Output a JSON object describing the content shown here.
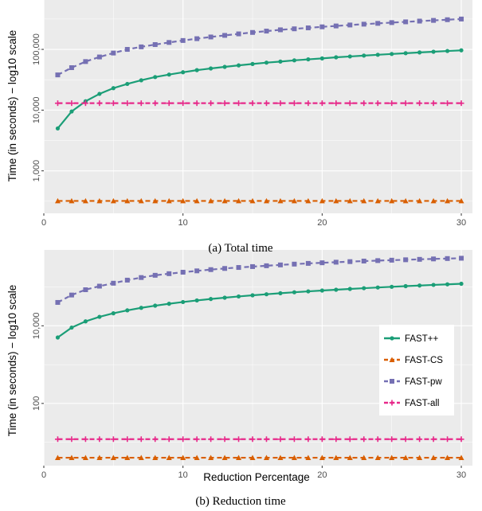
{
  "chart_data": [
    {
      "type": "line",
      "caption": "(a) Total time",
      "xlabel": "",
      "ylabel": "Time (in seconds) − log10 scale",
      "y_scale": "log10",
      "xlim": [
        0,
        30.8
      ],
      "ylim": [
        200,
        650000
      ],
      "x_ticks": [
        0,
        10,
        20,
        30
      ],
      "y_ticks": [
        1000,
        10000,
        100000
      ],
      "y_tick_labels": [
        "1,000",
        "10,000",
        "100,000"
      ],
      "grid": true,
      "x": [
        1,
        2,
        3,
        4,
        5,
        6,
        7,
        8,
        9,
        10,
        11,
        12,
        13,
        14,
        15,
        16,
        17,
        18,
        19,
        20,
        21,
        22,
        23,
        24,
        25,
        26,
        27,
        28,
        29,
        30
      ],
      "series": [
        {
          "name": "FAST++",
          "color": "#1b9e77",
          "marker": "circle",
          "dash": "solid",
          "values": [
            5000,
            9500,
            14000,
            18500,
            23000,
            27000,
            31000,
            35000,
            38500,
            42000,
            45500,
            48500,
            51500,
            54500,
            57500,
            60500,
            63000,
            66000,
            68500,
            71000,
            74000,
            76500,
            79000,
            81500,
            84000,
            86500,
            89000,
            91500,
            94000,
            96500
          ]
        },
        {
          "name": "FAST-CS",
          "color": "#d95f02",
          "marker": "triangle",
          "dash": "dashed",
          "values": [
            320,
            320,
            320,
            320,
            320,
            320,
            320,
            320,
            320,
            320,
            320,
            320,
            320,
            320,
            320,
            320,
            320,
            320,
            320,
            320,
            320,
            320,
            320,
            320,
            320,
            320,
            320,
            320,
            320,
            320
          ]
        },
        {
          "name": "FAST-pw",
          "color": "#7570b3",
          "marker": "square",
          "dash": "dashed",
          "values": [
            38000,
            50000,
            63000,
            75000,
            87000,
            100000,
            110000,
            120000,
            130000,
            140000,
            150000,
            160000,
            170000,
            180000,
            190000,
            200000,
            210000,
            218000,
            226000,
            235000,
            243000,
            252000,
            260000,
            268000,
            276000,
            284000,
            292000,
            300000,
            308000,
            316000
          ]
        },
        {
          "name": "FAST-all",
          "color": "#e7298a",
          "marker": "plus",
          "dash": "dashed",
          "values": [
            13000,
            13000,
            13000,
            13000,
            13000,
            13000,
            13000,
            13000,
            13000,
            13000,
            13000,
            13000,
            13000,
            13000,
            13000,
            13000,
            13000,
            13000,
            13000,
            13000,
            13000,
            13000,
            13000,
            13000,
            13000,
            13000,
            13000,
            13000,
            13000,
            13000
          ]
        }
      ]
    },
    {
      "type": "line",
      "caption": "(b) Reduction time",
      "xlabel": "Reduction Percentage",
      "ylabel": "Time (in seconds) − log10 scale",
      "y_scale": "log10",
      "xlim": [
        0,
        30.8
      ],
      "ylim": [
        2.5,
        900000
      ],
      "x_ticks": [
        0,
        10,
        20,
        30
      ],
      "y_ticks": [
        100,
        10000
      ],
      "y_tick_labels": [
        "100",
        "10,000"
      ],
      "grid": true,
      "legend_position": "right",
      "x": [
        1,
        2,
        3,
        4,
        5,
        6,
        7,
        8,
        9,
        10,
        11,
        12,
        13,
        14,
        15,
        16,
        17,
        18,
        19,
        20,
        21,
        22,
        23,
        24,
        25,
        26,
        27,
        28,
        29,
        30
      ],
      "series": [
        {
          "name": "FAST++",
          "color": "#1b9e77",
          "marker": "circle",
          "dash": "solid",
          "values": [
            5000,
            9000,
            13000,
            17000,
            21000,
            25000,
            29000,
            33000,
            37000,
            41000,
            45000,
            49000,
            53000,
            57000,
            61000,
            65000,
            69000,
            73000,
            77000,
            81000,
            85000,
            89000,
            93000,
            97000,
            101000,
            105000,
            109000,
            113000,
            117000,
            121000
          ]
        },
        {
          "name": "FAST-CS",
          "color": "#d95f02",
          "marker": "triangle",
          "dash": "dashed",
          "values": [
            4,
            4,
            4,
            4,
            4,
            4,
            4,
            4,
            4,
            4,
            4,
            4,
            4,
            4,
            4,
            4,
            4,
            4,
            4,
            4,
            4,
            4,
            4,
            4,
            4,
            4,
            4,
            4,
            4,
            4
          ]
        },
        {
          "name": "FAST-pw",
          "color": "#7570b3",
          "marker": "square",
          "dash": "dashed",
          "values": [
            40000,
            62000,
            85000,
            105000,
            125000,
            150000,
            175000,
            200000,
            220000,
            240000,
            260000,
            280000,
            300000,
            318000,
            335000,
            352000,
            370000,
            388000,
            405000,
            420000,
            435000,
            450000,
            465000,
            478000,
            490000,
            502000,
            515000,
            528000,
            540000,
            550000
          ]
        },
        {
          "name": "FAST-all",
          "color": "#e7298a",
          "marker": "plus",
          "dash": "dashed",
          "values": [
            12,
            12,
            12,
            12,
            12,
            12,
            12,
            12,
            12,
            12,
            12,
            12,
            12,
            12,
            12,
            12,
            12,
            12,
            12,
            12,
            12,
            12,
            12,
            12,
            12,
            12,
            12,
            12,
            12,
            12
          ]
        }
      ]
    }
  ]
}
